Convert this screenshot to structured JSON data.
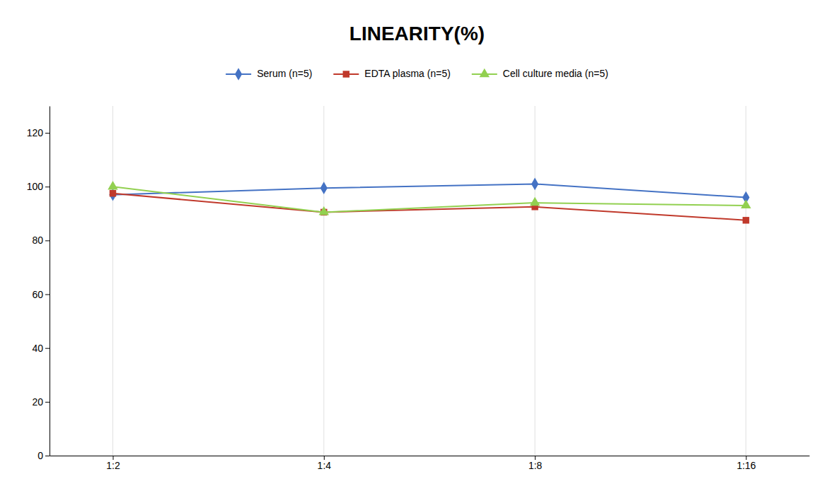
{
  "chart_data": {
    "type": "line",
    "title": "LINEARITY(%)",
    "categories": [
      "1:2",
      "1:4",
      "1:8",
      "1:16"
    ],
    "series": [
      {
        "name": "Serum (n=5)",
        "color": "#4472C4",
        "marker": "diamond",
        "values": [
          97,
          99.5,
          101,
          96
        ]
      },
      {
        "name": "EDTA plasma (n=5)",
        "color": "#C0392B",
        "marker": "square",
        "values": [
          97.5,
          90.5,
          92.5,
          87.5
        ]
      },
      {
        "name": "Cell culture media (n=5)",
        "color": "#92D050",
        "marker": "triangle",
        "values": [
          100,
          90.5,
          94,
          93
        ]
      }
    ],
    "ylim": [
      0,
      130
    ],
    "yticks": [
      0,
      20,
      40,
      60,
      80,
      100,
      120
    ],
    "grid": "x",
    "legend": "top"
  }
}
